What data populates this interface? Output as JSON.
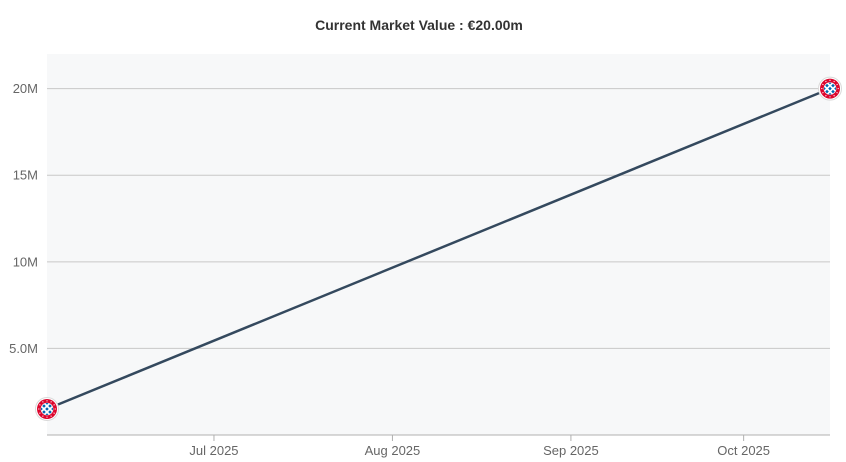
{
  "chart_data": {
    "type": "line",
    "title": "Current Market Value : €20.00m",
    "xlabel": "",
    "ylabel": "",
    "x_ticks": [
      {
        "date": "2025-07-01",
        "label": "Jul 2025"
      },
      {
        "date": "2025-08-01",
        "label": "Aug 2025"
      },
      {
        "date": "2025-09-01",
        "label": "Sep 2025"
      },
      {
        "date": "2025-10-01",
        "label": "Oct 2025"
      }
    ],
    "y_ticks": [
      {
        "value": 5000000,
        "label": "5.0M"
      },
      {
        "value": 10000000,
        "label": "10M"
      },
      {
        "value": 15000000,
        "label": "15M"
      },
      {
        "value": 20000000,
        "label": "20M"
      }
    ],
    "xlim": [
      "2025-06-02",
      "2025-10-16"
    ],
    "ylim": [
      0,
      22000000
    ],
    "grid": true,
    "series": [
      {
        "color": "#34495e",
        "marker_icon": "fc-bayern-crest-icon",
        "points": [
          {
            "x": "2025-06-02",
            "y": 1500000
          },
          {
            "x": "2025-10-16",
            "y": 20000000
          }
        ]
      }
    ],
    "colors": {
      "plot_background": "#f7f8f9",
      "crest_red": "#dc052d",
      "crest_blue": "#0066b2"
    }
  }
}
